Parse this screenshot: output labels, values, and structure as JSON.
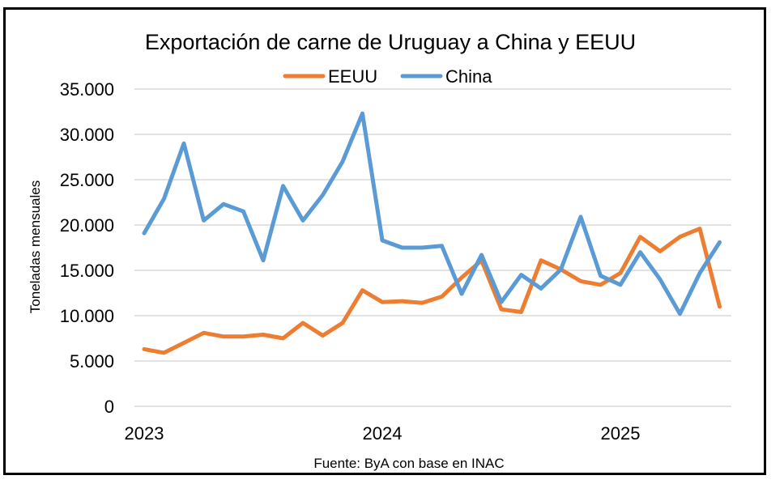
{
  "chart_data": {
    "type": "line",
    "title": "Exportación de carne de Uruguay a China y EEUU",
    "ylabel": "Toneladas mensuales",
    "source": "Fuente: ByA con base en INAC",
    "ylim": [
      0,
      35000
    ],
    "yticks": [
      "0",
      "5.000",
      "10.000",
      "15.000",
      "20.000",
      "25.000",
      "30.000",
      "35.000"
    ],
    "ytick_values": [
      0,
      5000,
      10000,
      15000,
      20000,
      25000,
      30000,
      35000
    ],
    "xticks": [
      "2023",
      "2024",
      "2025"
    ],
    "xtick_index": [
      0,
      12,
      24
    ],
    "x_count": 30,
    "grid": true,
    "legend_position": "top-center",
    "series": [
      {
        "name": "EEUU",
        "color": "#ED7D31",
        "values": [
          6300,
          5900,
          7000,
          8100,
          7700,
          7700,
          7900,
          7500,
          9200,
          7800,
          9200,
          12800,
          11500,
          11600,
          11400,
          12100,
          14200,
          16100,
          10700,
          10400,
          16100,
          15100,
          13800,
          13400,
          14700,
          18700,
          17100,
          18700,
          19600,
          11000
        ]
      },
      {
        "name": "China",
        "color": "#5B9BD5",
        "values": [
          19100,
          22900,
          29000,
          20500,
          22300,
          21500,
          16100,
          24300,
          20500,
          23300,
          27000,
          32300,
          18300,
          17500,
          17500,
          17700,
          12400,
          16700,
          11500,
          14500,
          13000,
          15100,
          20900,
          14400,
          13400,
          17000,
          14000,
          10200,
          14700,
          18100
        ]
      }
    ]
  }
}
